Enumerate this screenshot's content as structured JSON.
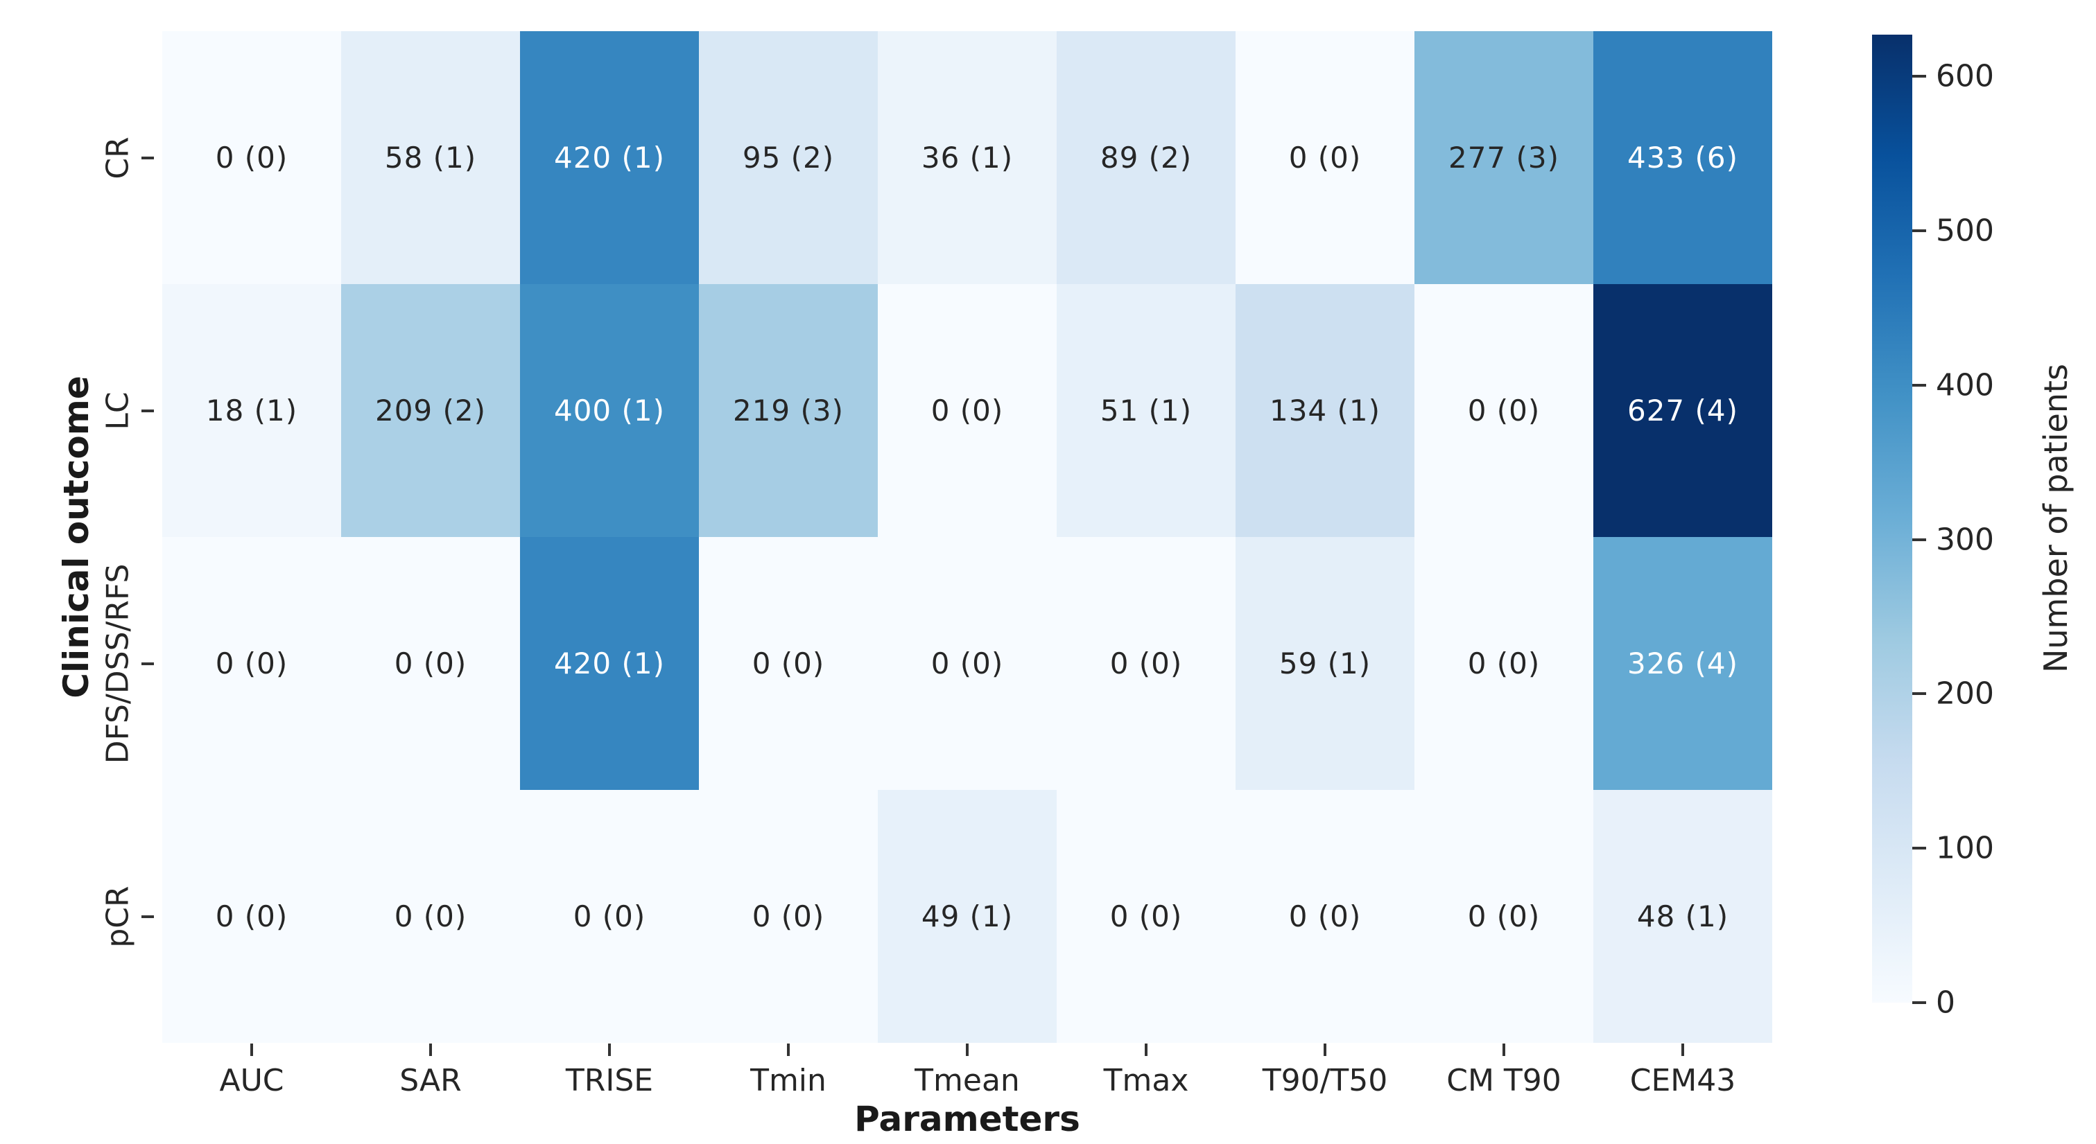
{
  "figure": {
    "background_color": "#ffffff",
    "text_color": "#262626"
  },
  "chart_data": {
    "type": "heatmap",
    "title": "",
    "xlabel": "Parameters",
    "ylabel": "Clinical outcome",
    "columns": [
      "AUC",
      "SAR",
      "TRISE",
      "Tmin",
      "Tmean",
      "Tmax",
      "T90/T50",
      "CM T90",
      "CEM43"
    ],
    "rows": [
      "CR",
      "LC",
      "DFS/DSS/RFS",
      "pCR"
    ],
    "values": [
      [
        0,
        58,
        420,
        95,
        36,
        89,
        0,
        277,
        433
      ],
      [
        18,
        209,
        400,
        219,
        0,
        51,
        134,
        0,
        627
      ],
      [
        0,
        0,
        420,
        0,
        0,
        0,
        59,
        0,
        326
      ],
      [
        0,
        0,
        0,
        0,
        49,
        0,
        0,
        0,
        48
      ]
    ],
    "labels": [
      [
        "0 (0)",
        "58 (1)",
        "420 (1)",
        "95 (2)",
        "36 (1)",
        "89 (2)",
        "0 (0)",
        "277 (3)",
        "433 (6)"
      ],
      [
        "18 (1)",
        "209 (2)",
        "400 (1)",
        "219 (3)",
        "0 (0)",
        "51 (1)",
        "134 (1)",
        "0 (0)",
        "627 (4)"
      ],
      [
        "0 (0)",
        "0 (0)",
        "420 (1)",
        "0 (0)",
        "0 (0)",
        "0 (0)",
        "59 (1)",
        "0 (0)",
        "326 (4)"
      ],
      [
        "0 (0)",
        "0 (0)",
        "0 (0)",
        "0 (0)",
        "49 (1)",
        "0 (0)",
        "0 (0)",
        "0 (0)",
        "48 (1)"
      ]
    ],
    "vmin": 0,
    "vmax": 627,
    "grid": false,
    "legend": false,
    "colormap": "Blues",
    "colormap_anchors": [
      {
        "t": 0.0,
        "color": "#f7fbff"
      },
      {
        "t": 0.125,
        "color": "#deebf7"
      },
      {
        "t": 0.25,
        "color": "#c6dbef"
      },
      {
        "t": 0.375,
        "color": "#9ecae1"
      },
      {
        "t": 0.5,
        "color": "#6baed6"
      },
      {
        "t": 0.625,
        "color": "#4292c6"
      },
      {
        "t": 0.75,
        "color": "#2171b5"
      },
      {
        "t": 0.875,
        "color": "#08519c"
      },
      {
        "t": 1.0,
        "color": "#08306b"
      }
    ],
    "annotation_light_text_color": "#ffffff",
    "annotation_dark_text_color": "#262626",
    "colorbar": {
      "label": "Number of patients",
      "ticks": [
        0,
        100,
        200,
        300,
        400,
        500,
        600
      ],
      "position": "right"
    }
  }
}
